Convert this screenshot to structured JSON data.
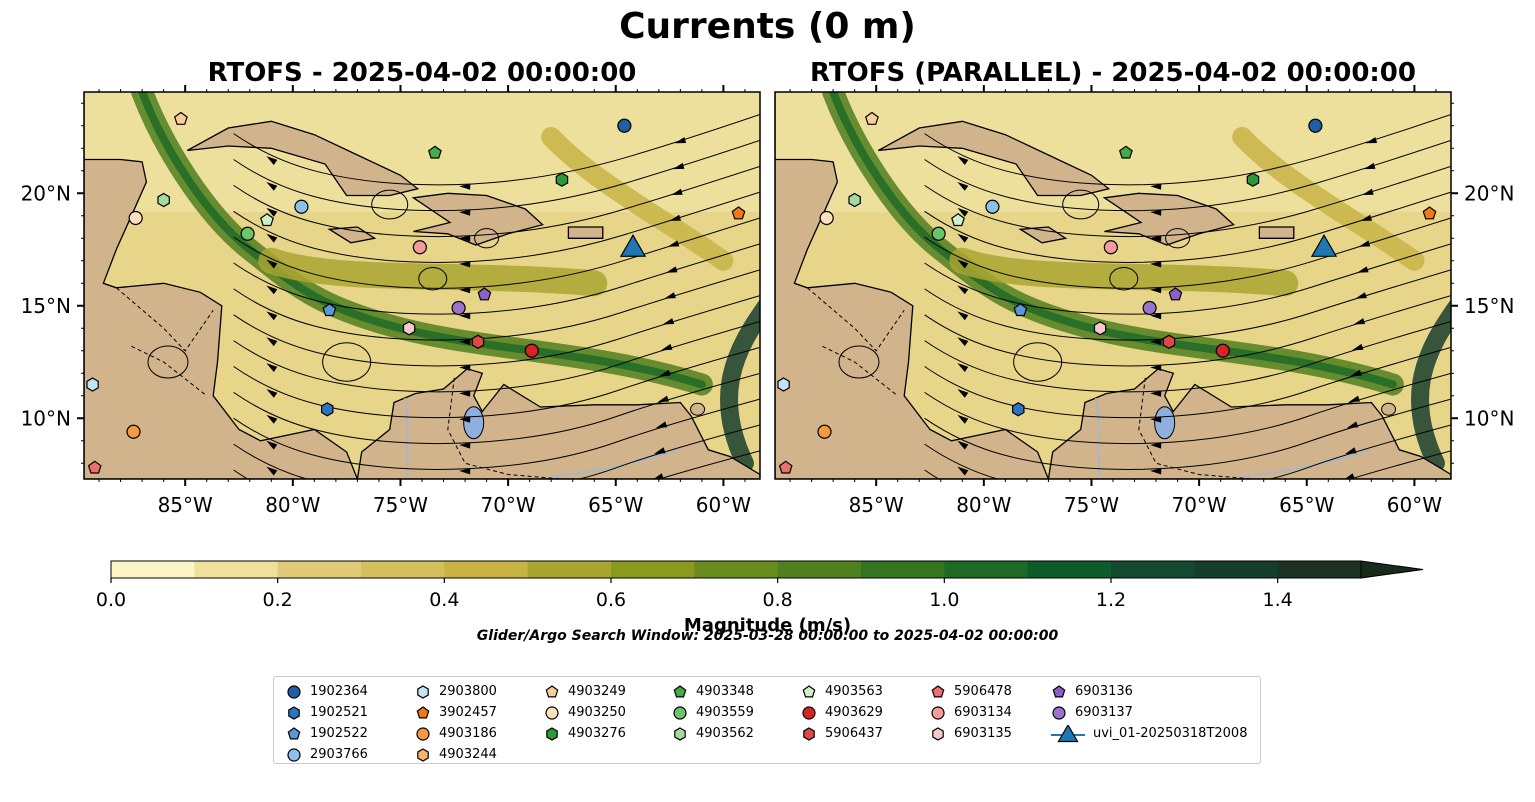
{
  "suptitle": "Currents (0 m)",
  "panels": [
    {
      "title": "RTOFS - 2025-04-02 00:00:00"
    },
    {
      "title": "RTOFS (PARALLEL) - 2025-04-02 00:00:00"
    }
  ],
  "colorbar": {
    "label": "Magnitude (m/s)",
    "ticks": [
      "0.0",
      "0.2",
      "0.4",
      "0.6",
      "0.8",
      "1.0",
      "1.2",
      "1.4"
    ],
    "colors": [
      "#fbf6c4",
      "#efe09c",
      "#e0cb78",
      "#d3bf5c",
      "#c7b445",
      "#a9a531",
      "#8a9a1f",
      "#6a8c1c",
      "#4f7f1f",
      "#357521",
      "#1e6a26",
      "#0f5c2b",
      "#114a2e",
      "#163e2c",
      "#1d3222",
      "#1a2a1a"
    ]
  },
  "search_window": "Glider/Argo Search Window: 2025-03-28 00:00:00 to 2025-04-02 00:00:00",
  "legend": [
    {
      "label": "1902364",
      "color": "#1f5fa8",
      "marker": "circle"
    },
    {
      "label": "1902521",
      "color": "#2f73c0",
      "marker": "hexagon"
    },
    {
      "label": "1902522",
      "color": "#5a98d8",
      "marker": "pentagon"
    },
    {
      "label": "2903766",
      "color": "#8ec1ea",
      "marker": "circle"
    },
    {
      "label": "2903800",
      "color": "#c6e2f6",
      "marker": "hexagon"
    },
    {
      "label": "3902457",
      "color": "#f07818",
      "marker": "pentagon"
    },
    {
      "label": "4903186",
      "color": "#f59a40",
      "marker": "circle"
    },
    {
      "label": "4903244",
      "color": "#f8b46c",
      "marker": "hexagon"
    },
    {
      "label": "4903249",
      "color": "#fbcd98",
      "marker": "pentagon"
    },
    {
      "label": "4903250",
      "color": "#fde0c0",
      "marker": "circle"
    },
    {
      "label": "4903276",
      "color": "#2a9a36",
      "marker": "hexagon"
    },
    {
      "label": "4903348",
      "color": "#45ab48",
      "marker": "pentagon"
    },
    {
      "label": "4903559",
      "color": "#6cc46a",
      "marker": "circle"
    },
    {
      "label": "4903562",
      "color": "#a4dca0",
      "marker": "hexagon"
    },
    {
      "label": "4903563",
      "color": "#cff0c8",
      "marker": "pentagon"
    },
    {
      "label": "4903629",
      "color": "#d42424",
      "marker": "circle"
    },
    {
      "label": "5906437",
      "color": "#e04848",
      "marker": "hexagon"
    },
    {
      "label": "5906478",
      "color": "#ec7070",
      "marker": "pentagon"
    },
    {
      "label": "6903134",
      "color": "#f49c9c",
      "marker": "circle"
    },
    {
      "label": "6903135",
      "color": "#f9c8c8",
      "marker": "hexagon"
    },
    {
      "label": "6903136",
      "color": "#8a60c6",
      "marker": "pentagon"
    },
    {
      "label": "6903137",
      "color": "#9a74cc",
      "marker": "circle"
    },
    {
      "label": "uvi_01-20250318T2008",
      "color": "#1f77b4",
      "marker": "triangle"
    }
  ],
  "chart_data": [
    {
      "type": "scatter",
      "title": "RTOFS - 2025-04-02 00:00:00",
      "xlabel": "",
      "ylabel": "",
      "xlim": [
        -89.7,
        -58.3
      ],
      "ylim": [
        7.3,
        24.5
      ],
      "xticks": [
        "85°W",
        "80°W",
        "75°W",
        "70°W",
        "65°W",
        "60°W"
      ],
      "yticks": [
        "10°N",
        "15°N",
        "20°N"
      ],
      "points": [
        {
          "id": "1902364",
          "lon": -64.6,
          "lat": 23.0
        },
        {
          "id": "1902521",
          "lon": -78.4,
          "lat": 10.4
        },
        {
          "id": "1902522",
          "lon": -78.3,
          "lat": 14.8
        },
        {
          "id": "2903766",
          "lon": -79.6,
          "lat": 19.4
        },
        {
          "id": "2903800",
          "lon": -89.3,
          "lat": 11.5
        },
        {
          "id": "3902457",
          "lon": -59.3,
          "lat": 19.1
        },
        {
          "id": "4903186",
          "lon": -87.4,
          "lat": 9.4
        },
        {
          "id": "4903249",
          "lon": -85.2,
          "lat": 23.3
        },
        {
          "id": "4903250",
          "lon": -87.3,
          "lat": 18.9
        },
        {
          "id": "4903276",
          "lon": -67.5,
          "lat": 20.6
        },
        {
          "id": "4903348",
          "lon": -73.4,
          "lat": 21.8
        },
        {
          "id": "4903559",
          "lon": -82.1,
          "lat": 18.2
        },
        {
          "id": "4903562",
          "lon": -86.0,
          "lat": 19.7
        },
        {
          "id": "4903563",
          "lon": -81.2,
          "lat": 18.8
        },
        {
          "id": "4903629",
          "lon": -68.9,
          "lat": 13.0
        },
        {
          "id": "5906437",
          "lon": -71.4,
          "lat": 13.4
        },
        {
          "id": "5906478",
          "lon": -89.2,
          "lat": 7.8
        },
        {
          "id": "6903134",
          "lon": -74.1,
          "lat": 17.6
        },
        {
          "id": "6903135",
          "lon": -74.6,
          "lat": 14.0
        },
        {
          "id": "6903136",
          "lon": -71.1,
          "lat": 15.5
        },
        {
          "id": "6903137",
          "lon": -72.3,
          "lat": 14.9
        },
        {
          "id": "uvi_01-20250318T2008",
          "lon": -64.2,
          "lat": 17.6
        }
      ]
    },
    {
      "type": "scatter",
      "title": "RTOFS (PARALLEL) - 2025-04-02 00:00:00",
      "xlabel": "",
      "ylabel": "",
      "xlim": [
        -89.7,
        -58.3
      ],
      "ylim": [
        7.3,
        24.5
      ],
      "xticks": [
        "85°W",
        "80°W",
        "75°W",
        "70°W",
        "65°W",
        "60°W"
      ],
      "yticks": [
        "10°N",
        "15°N",
        "20°N"
      ],
      "points": [
        {
          "id": "1902364",
          "lon": -64.6,
          "lat": 23.0
        },
        {
          "id": "1902521",
          "lon": -78.4,
          "lat": 10.4
        },
        {
          "id": "1902522",
          "lon": -78.3,
          "lat": 14.8
        },
        {
          "id": "2903766",
          "lon": -79.6,
          "lat": 19.4
        },
        {
          "id": "2903800",
          "lon": -89.3,
          "lat": 11.5
        },
        {
          "id": "3902457",
          "lon": -59.3,
          "lat": 19.1
        },
        {
          "id": "4903186",
          "lon": -87.4,
          "lat": 9.4
        },
        {
          "id": "4903249",
          "lon": -85.2,
          "lat": 23.3
        },
        {
          "id": "4903250",
          "lon": -87.3,
          "lat": 18.9
        },
        {
          "id": "4903276",
          "lon": -67.5,
          "lat": 20.6
        },
        {
          "id": "4903348",
          "lon": -73.4,
          "lat": 21.8
        },
        {
          "id": "4903559",
          "lon": -82.1,
          "lat": 18.2
        },
        {
          "id": "4903562",
          "lon": -86.0,
          "lat": 19.7
        },
        {
          "id": "4903563",
          "lon": -81.2,
          "lat": 18.8
        },
        {
          "id": "4903629",
          "lon": -68.9,
          "lat": 13.0
        },
        {
          "id": "5906437",
          "lon": -71.4,
          "lat": 13.4
        },
        {
          "id": "5906478",
          "lon": -89.2,
          "lat": 7.8
        },
        {
          "id": "6903134",
          "lon": -74.1,
          "lat": 17.6
        },
        {
          "id": "6903135",
          "lon": -74.6,
          "lat": 14.0
        },
        {
          "id": "6903136",
          "lon": -71.1,
          "lat": 15.5
        },
        {
          "id": "6903137",
          "lon": -72.3,
          "lat": 14.9
        },
        {
          "id": "uvi_01-20250318T2008",
          "lon": -64.2,
          "lat": 17.6
        }
      ]
    }
  ]
}
